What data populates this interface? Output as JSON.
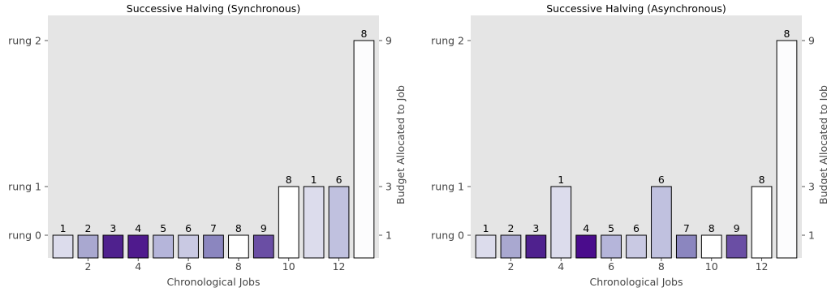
{
  "chart_data": [
    {
      "type": "bar",
      "title": "Successive Halving (Synchronous)",
      "xlabel": "Chronological Jobs",
      "ylabel_right": "Budget Allocated to Job",
      "y_rungs": [
        "rung 0",
        "rung 1",
        "rung 2"
      ],
      "y_budget_ticks": [
        "1",
        "3",
        "9"
      ],
      "x_ticks": [
        2,
        4,
        6,
        8,
        10,
        12
      ],
      "x": [
        1,
        2,
        3,
        4,
        5,
        6,
        7,
        8,
        9,
        10,
        11,
        12,
        13
      ],
      "rung": [
        0,
        0,
        0,
        0,
        0,
        0,
        0,
        0,
        0,
        1,
        1,
        1,
        2
      ],
      "labels": [
        "1",
        "2",
        "3",
        "4",
        "5",
        "6",
        "7",
        "8",
        "9",
        "8",
        "1",
        "6",
        "8"
      ],
      "colors": [
        "#dcdcec",
        "#a9a8d0",
        "#4f218e",
        "#4f1a8d",
        "#b5b5da",
        "#c9c9e3",
        "#8b86bf",
        "#ffffff",
        "#6a4ea4",
        "#ffffff",
        "#dcdcec",
        "#c0c1df",
        "#fcfcfd"
      ],
      "grid": false,
      "background": "#e5e5e5"
    },
    {
      "type": "bar",
      "title": "Successive Halving (Asynchronous)",
      "xlabel": "Chronological Jobs",
      "ylabel_right": "Budget Allocated to Job",
      "y_rungs": [
        "rung 0",
        "rung 1",
        "rung 2"
      ],
      "y_budget_ticks": [
        "1",
        "3",
        "9"
      ],
      "x_ticks": [
        2,
        4,
        6,
        8,
        10,
        12
      ],
      "x": [
        1,
        2,
        3,
        4,
        5,
        6,
        7,
        8,
        9,
        10,
        11,
        12,
        13
      ],
      "rung": [
        0,
        0,
        0,
        1,
        0,
        0,
        0,
        1,
        0,
        0,
        0,
        1,
        2
      ],
      "labels": [
        "1",
        "2",
        "3",
        "1",
        "4",
        "5",
        "6",
        "6",
        "7",
        "8",
        "9",
        "8",
        "8"
      ],
      "colors": [
        "#dcdcec",
        "#a9a8d0",
        "#4f218e",
        "#dcdcec",
        "#4a0c8c",
        "#b5b5da",
        "#c9c9e3",
        "#c0c1df",
        "#8b86bf",
        "#ffffff",
        "#6a4ea4",
        "#ffffff",
        "#fcfcfd"
      ],
      "grid": false,
      "background": "#e5e5e5"
    }
  ]
}
